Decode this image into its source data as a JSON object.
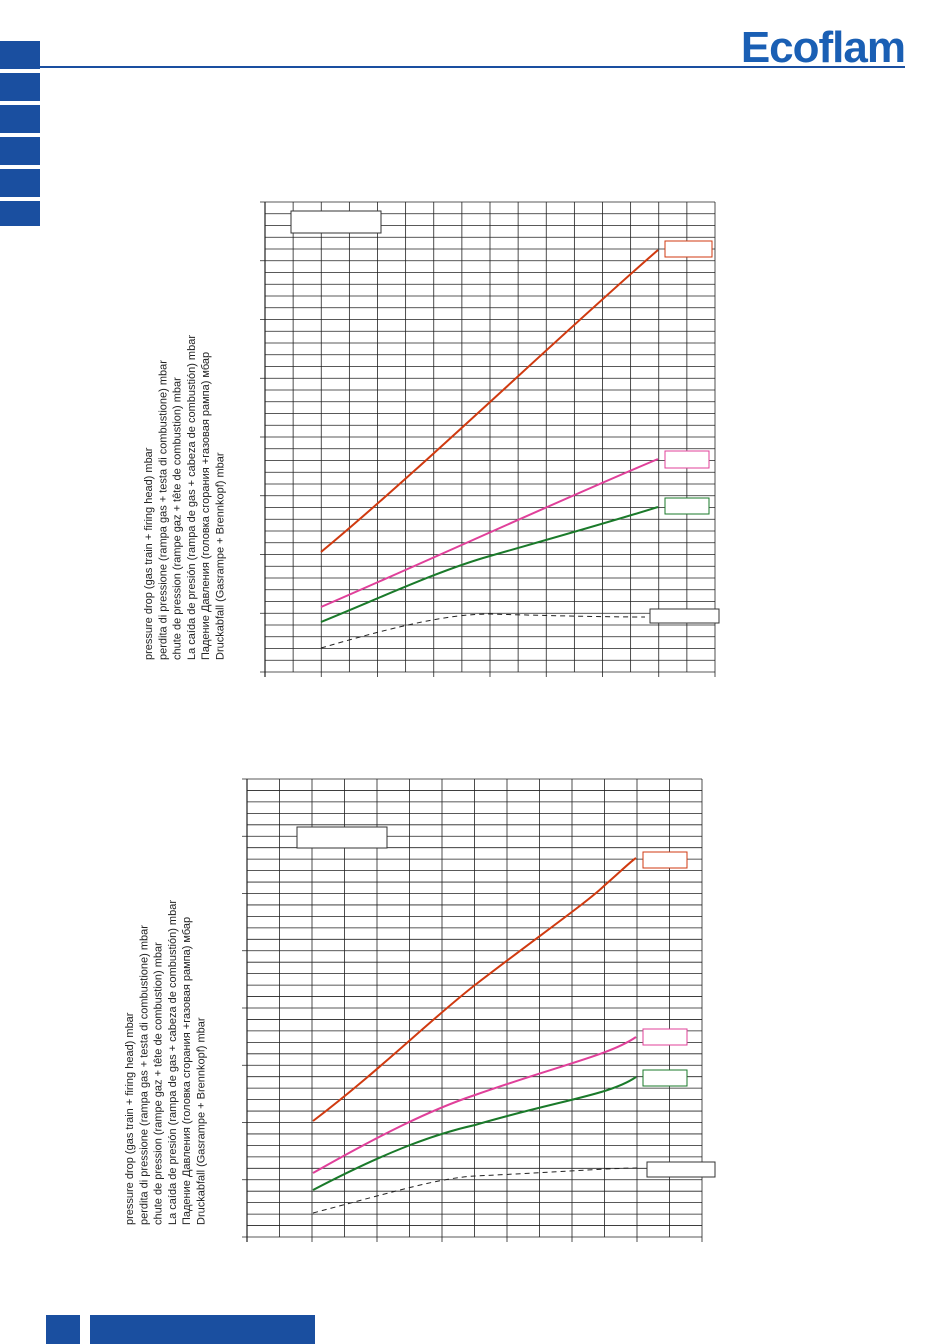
{
  "header": {
    "logo": "Ecoflam"
  },
  "charts": [
    {
      "axis_label": [
        "pressure drop (gas train + firing head) mbar",
        "perdita di pressione (rampa gas + testa di combustione) mbar",
        "chute de pression (rampe gaz + tête de combustion) mbar",
        "La caída de presión (rampa de gas + cabeza de combustión) mbar",
        "Падение Давления  (головка сгорания +газовая рампа) мбар",
        "Druckabfall (Gasrampe + Brennkopf) mbar"
      ]
    },
    {
      "axis_label": [
        "pressure drop (gas train + firing head) mbar",
        "perdita di pressione (rampa gas + testa di combustione) mbar",
        "chute de pression (rampe gaz + tête de combustion) mbar",
        "La caída de presión (rampa de gas + cabeza de combustión) mbar",
        "Падение Давления  (головка сгорания +газовая рампа) мбар",
        "Druckabfall (Gasrampe + Brennkopf) mbar"
      ]
    }
  ]
}
